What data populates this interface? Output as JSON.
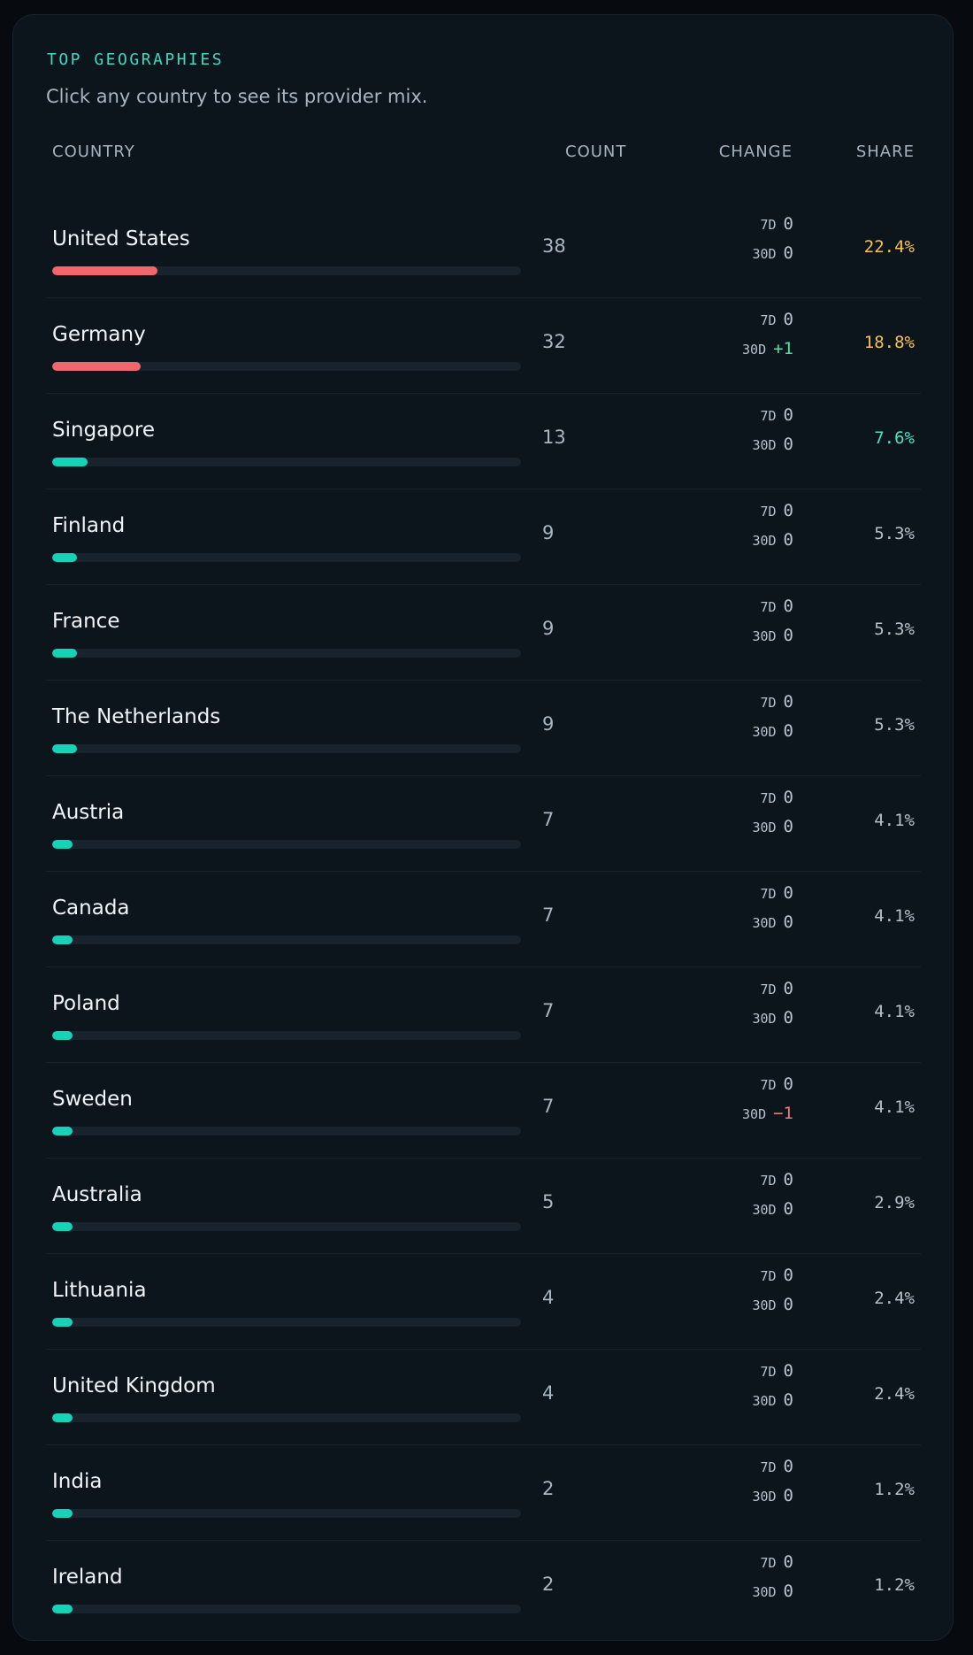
{
  "header": {
    "eyebrow": "TOP GEOGRAPHIES",
    "subtitle": "Click any country to see its provider mix."
  },
  "columns": {
    "country": "COUNTRY",
    "count": "COUNT",
    "change": "CHANGE",
    "share": "SHARE"
  },
  "change_labels": {
    "d7": "7D",
    "d30": "30D"
  },
  "colors": {
    "bar_high": "#f0666d",
    "bar_normal": "#16d2b6",
    "share_high": "#f5c354",
    "share_mid": "#4ee0c4",
    "share_normal": "#b5c0cb",
    "delta_positive": "#4ee0a6",
    "delta_negative": "#f57a7a",
    "delta_zero": "#b8c4d0"
  },
  "rows": [
    {
      "country": "United States",
      "count": "38",
      "d7": "0",
      "d30": "0",
      "share": "22.4%",
      "bar_fraction": 0.224,
      "tier": "high"
    },
    {
      "country": "Germany",
      "count": "32",
      "d7": "0",
      "d30": "+1",
      "share": "18.8%",
      "bar_fraction": 0.188,
      "tier": "high"
    },
    {
      "country": "Singapore",
      "count": "13",
      "d7": "0",
      "d30": "0",
      "share": "7.6%",
      "bar_fraction": 0.076,
      "tier": "mid"
    },
    {
      "country": "Finland",
      "count": "9",
      "d7": "0",
      "d30": "0",
      "share": "5.3%",
      "bar_fraction": 0.053,
      "tier": "normal"
    },
    {
      "country": "France",
      "count": "9",
      "d7": "0",
      "d30": "0",
      "share": "5.3%",
      "bar_fraction": 0.053,
      "tier": "normal"
    },
    {
      "country": "The Netherlands",
      "count": "9",
      "d7": "0",
      "d30": "0",
      "share": "5.3%",
      "bar_fraction": 0.053,
      "tier": "normal"
    },
    {
      "country": "Austria",
      "count": "7",
      "d7": "0",
      "d30": "0",
      "share": "4.1%",
      "bar_fraction": 0.041,
      "tier": "normal"
    },
    {
      "country": "Canada",
      "count": "7",
      "d7": "0",
      "d30": "0",
      "share": "4.1%",
      "bar_fraction": 0.041,
      "tier": "normal"
    },
    {
      "country": "Poland",
      "count": "7",
      "d7": "0",
      "d30": "0",
      "share": "4.1%",
      "bar_fraction": 0.041,
      "tier": "normal"
    },
    {
      "country": "Sweden",
      "count": "7",
      "d7": "0",
      "d30": "−1",
      "share": "4.1%",
      "bar_fraction": 0.041,
      "tier": "normal"
    },
    {
      "country": "Australia",
      "count": "5",
      "d7": "0",
      "d30": "0",
      "share": "2.9%",
      "bar_fraction": 0.029,
      "tier": "normal"
    },
    {
      "country": "Lithuania",
      "count": "4",
      "d7": "0",
      "d30": "0",
      "share": "2.4%",
      "bar_fraction": 0.024,
      "tier": "normal"
    },
    {
      "country": "United Kingdom",
      "count": "4",
      "d7": "0",
      "d30": "0",
      "share": "2.4%",
      "bar_fraction": 0.024,
      "tier": "normal"
    },
    {
      "country": "India",
      "count": "2",
      "d7": "0",
      "d30": "0",
      "share": "1.2%",
      "bar_fraction": 0.012,
      "tier": "normal"
    },
    {
      "country": "Ireland",
      "count": "2",
      "d7": "0",
      "d30": "0",
      "share": "1.2%",
      "bar_fraction": 0.012,
      "tier": "normal"
    }
  ]
}
